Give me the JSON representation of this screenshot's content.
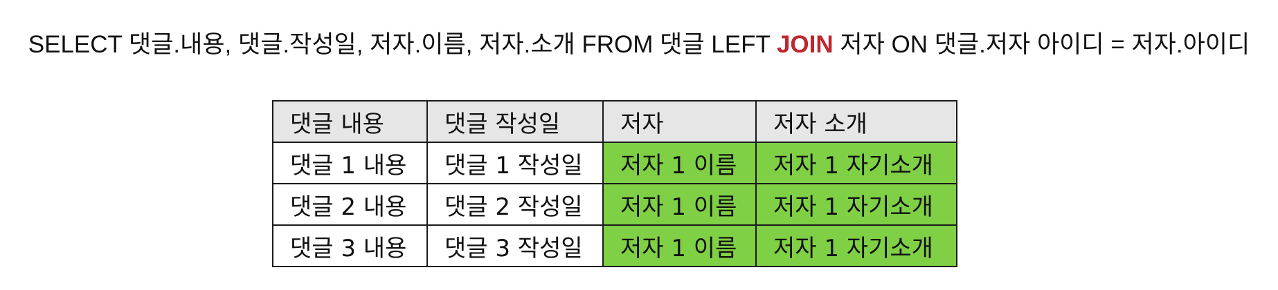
{
  "query": {
    "before": "SELECT 댓글.내용, 댓글.작성일, 저자.이름, 저자.소개 FROM 댓글 LEFT ",
    "highlight": "JOIN",
    "after": " 저자 ON 댓글.저자 아이디 = 저자.아이디",
    "highlight_color": "#c0262d"
  },
  "table": {
    "headers": [
      "댓글 내용",
      "댓글 작성일",
      "저자",
      "저자 소개"
    ],
    "rows": [
      [
        "댓글 1 내용",
        "댓글 1 작성일",
        "저자 1 이름",
        "저자 1 자기소개"
      ],
      [
        "댓글 2 내용",
        "댓글 2 작성일",
        "저자 1 이름",
        "저자 1 자기소개"
      ],
      [
        "댓글 3 내용",
        "댓글 3 작성일",
        "저자 1 이름",
        "저자 1 자기소개"
      ]
    ],
    "header_bg": "#e6e6e6",
    "joined_bg": "#7fd045"
  }
}
